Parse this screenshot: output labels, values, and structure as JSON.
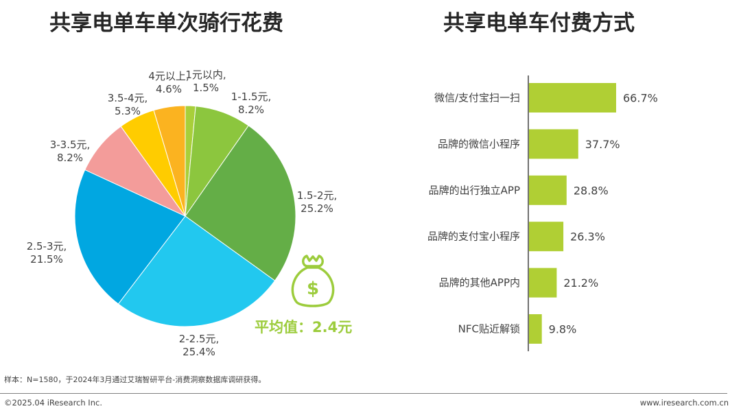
{
  "titles": {
    "left": "共享电单车单次骑行花费",
    "right": "共享电单车付费方式"
  },
  "average_label": "平均值：2.4元",
  "footer": {
    "note": "样本：N=1580，于2024年3月通过艾瑞智研平台-消费洞察数据库调研获得。",
    "copyright": "©2025.04 iResearch Inc.",
    "website": "www.iresearch.com.cn"
  },
  "chart_data": [
    {
      "type": "pie",
      "title": "共享电单车单次骑行花费",
      "start": "12 o'clock, clockwise",
      "slices": [
        {
          "label": "1元以内",
          "value": 1.5,
          "color": "#a8cf3a"
        },
        {
          "label": "1-1.5元",
          "value": 8.2,
          "color": "#8cc63e"
        },
        {
          "label": "1.5-2元",
          "value": 25.2,
          "color": "#64ae47"
        },
        {
          "label": "2-2.5元",
          "value": 25.4,
          "color": "#22c8ef"
        },
        {
          "label": "2.5-3元",
          "value": 21.5,
          "color": "#01a7e1"
        },
        {
          "label": "3-3.5元",
          "value": 8.2,
          "color": "#f39c9a"
        },
        {
          "label": "3.5-4元",
          "value": 5.3,
          "color": "#ffcc00"
        },
        {
          "label": "4元以上",
          "value": 4.6,
          "color": "#fbb320"
        }
      ]
    },
    {
      "type": "bar",
      "orientation": "horizontal",
      "title": "共享电单车付费方式",
      "unit": "%",
      "color": "#b0cf34",
      "categories": [
        "微信/支付宝扫一扫",
        "品牌的微信小程序",
        "品牌的出行独立APP",
        "品牌的支付宝小程序",
        "品牌的其他APP内",
        "NFC贴近解锁"
      ],
      "values": [
        66.7,
        37.7,
        28.8,
        26.3,
        21.2,
        9.8
      ]
    }
  ]
}
